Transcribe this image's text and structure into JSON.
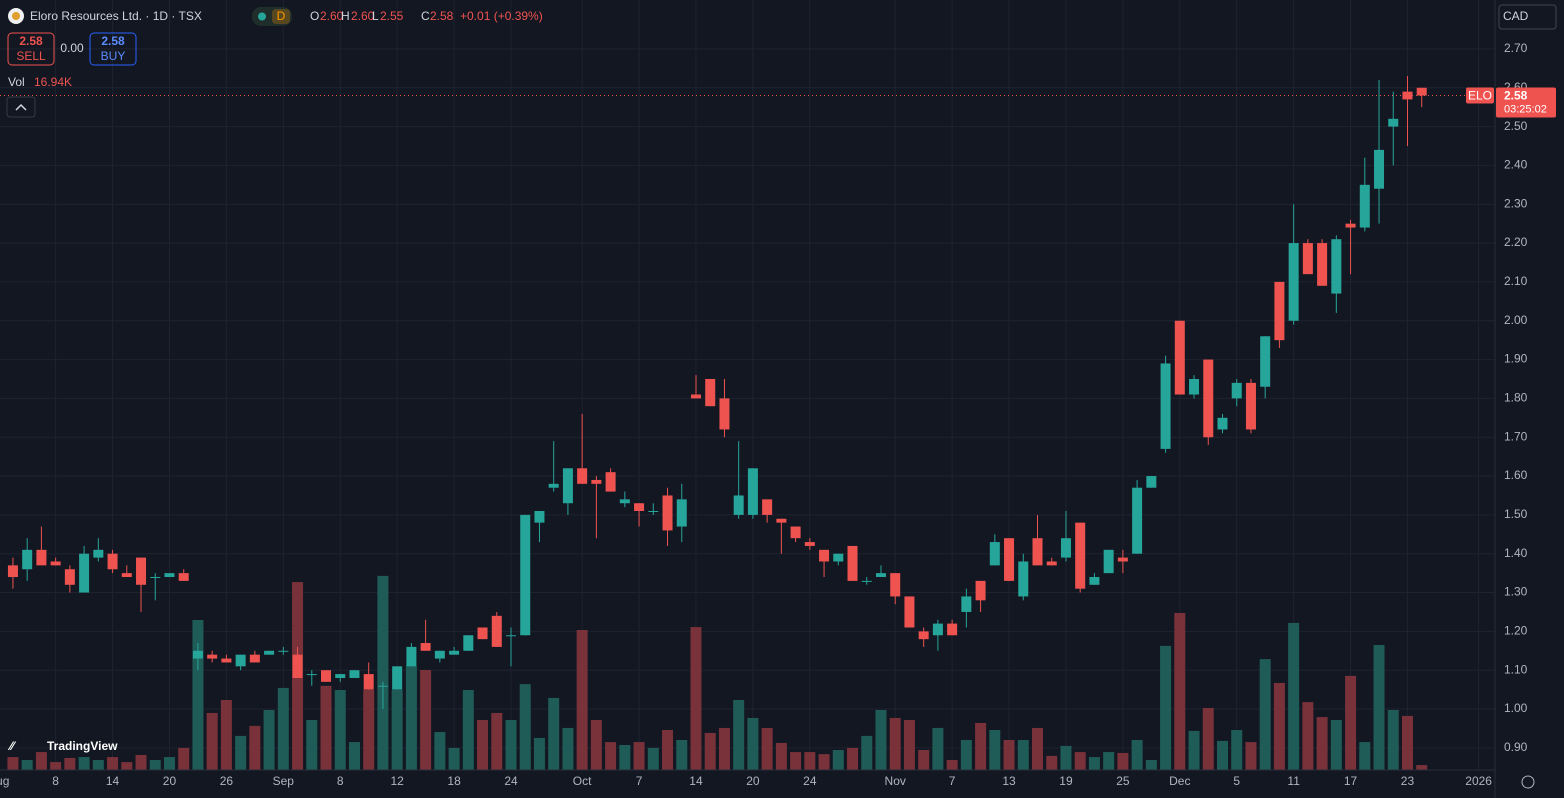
{
  "header": {
    "title": "Eloro Resources Ltd. · 1D · TSX",
    "interval_badge": "D",
    "open_label": "O",
    "open": "2.60",
    "high_label": "H",
    "high": "2.60",
    "low_label": "L",
    "low": "2.55",
    "close_label": "C",
    "close": "2.58",
    "change": "+0.01 (+0.39%)",
    "sell_price": "2.58",
    "sell_label": "SELL",
    "spread": "0.00",
    "buy_price": "2.58",
    "buy_label": "BUY",
    "volume_label": "Vol",
    "volume_value": "16.94K",
    "currency": "CAD",
    "symbol_tag": "ELO",
    "last_price_tag": "2.58",
    "countdown": "03:25:02",
    "logo": "TradingView"
  },
  "chart_data": {
    "type": "candlestick",
    "up_color": "#26a69a",
    "down_color": "#ef5350",
    "volume_up_color": "#1f5c58",
    "volume_down_color": "#79313a",
    "grid": true,
    "ylim": [
      0.843,
      2.826
    ],
    "yticks": [
      {
        "value": 0.9,
        "label": "0.90"
      },
      {
        "value": 1.0,
        "label": "1.00"
      },
      {
        "value": 1.1,
        "label": "1.10"
      },
      {
        "value": 1.2,
        "label": "1.20"
      },
      {
        "value": 1.3,
        "label": "1.30"
      },
      {
        "value": 1.4,
        "label": "1.40"
      },
      {
        "value": 1.5,
        "label": "1.50"
      },
      {
        "value": 1.6,
        "label": "1.60"
      },
      {
        "value": 1.7,
        "label": "1.70"
      },
      {
        "value": 1.8,
        "label": "1.80"
      },
      {
        "value": 1.9,
        "label": "1.90"
      },
      {
        "value": 2.0,
        "label": "2.00"
      },
      {
        "value": 2.1,
        "label": "2.10"
      },
      {
        "value": 2.2,
        "label": "2.20"
      },
      {
        "value": 2.3,
        "label": "2.30"
      },
      {
        "value": 2.4,
        "label": "2.40"
      },
      {
        "value": 2.5,
        "label": "2.50"
      },
      {
        "value": 2.6,
        "label": "2.60"
      },
      {
        "value": 2.7,
        "label": "2.70"
      }
    ],
    "xlim": [
      -0.91,
      104.15
    ],
    "xticks": [
      {
        "value": -1,
        "label": "Aug"
      },
      {
        "value": 3,
        "label": "8"
      },
      {
        "value": 7,
        "label": "14"
      },
      {
        "value": 11,
        "label": "20"
      },
      {
        "value": 15,
        "label": "26"
      },
      {
        "value": 19,
        "label": "Sep"
      },
      {
        "value": 23,
        "label": "8"
      },
      {
        "value": 27,
        "label": "12"
      },
      {
        "value": 31,
        "label": "18"
      },
      {
        "value": 35,
        "label": "24"
      },
      {
        "value": 40,
        "label": "Oct"
      },
      {
        "value": 44,
        "label": "7"
      },
      {
        "value": 48,
        "label": "14"
      },
      {
        "value": 52,
        "label": "20"
      },
      {
        "value": 56,
        "label": "24"
      },
      {
        "value": 62,
        "label": "Nov"
      },
      {
        "value": 66,
        "label": "7"
      },
      {
        "value": 70,
        "label": "13"
      },
      {
        "value": 74,
        "label": "19"
      },
      {
        "value": 78,
        "label": "25"
      },
      {
        "value": 82,
        "label": "Dec"
      },
      {
        "value": 86,
        "label": "5"
      },
      {
        "value": 90,
        "label": "11"
      },
      {
        "value": 94,
        "label": "17"
      },
      {
        "value": 98,
        "label": "23"
      },
      {
        "value": 103,
        "label": "2026"
      }
    ],
    "volume_ylim": [
      0,
      2618
    ],
    "open": [
      1.37,
      1.36,
      1.41,
      1.38,
      1.36,
      1.3,
      1.39,
      1.4,
      1.35,
      1.39,
      1.34,
      1.34,
      1.35,
      1.13,
      1.14,
      1.13,
      1.11,
      1.14,
      1.14,
      1.15,
      1.14,
      1.09,
      1.1,
      1.08,
      1.08,
      1.09,
      1.06,
      1.05,
      1.11,
      1.17,
      1.13,
      1.14,
      1.15,
      1.21,
      1.24,
      1.19,
      1.19,
      1.48,
      1.57,
      1.53,
      1.62,
      1.59,
      1.61,
      1.53,
      1.53,
      1.51,
      1.55,
      1.47,
      1.81,
      1.85,
      1.8,
      1.5,
      1.5,
      1.54,
      1.49,
      1.47,
      1.43,
      1.41,
      1.38,
      1.42,
      1.33,
      1.34,
      1.35,
      1.29,
      1.2,
      1.19,
      1.22,
      1.25,
      1.33,
      1.37,
      1.44,
      1.29,
      1.44,
      1.38,
      1.39,
      1.48,
      1.32,
      1.35,
      1.39,
      1.4,
      1.57,
      1.67,
      2.0,
      1.81,
      1.9,
      1.72,
      1.8,
      1.84,
      1.83,
      2.1,
      2.0,
      2.2,
      2.2,
      2.07,
      2.25,
      2.24,
      2.34,
      2.5,
      2.59,
      2.6
    ],
    "high": [
      1.39,
      1.44,
      1.47,
      1.39,
      1.37,
      1.42,
      1.44,
      1.41,
      1.37,
      1.39,
      1.35,
      1.35,
      1.36,
      1.17,
      1.15,
      1.14,
      1.14,
      1.15,
      1.15,
      1.16,
      1.16,
      1.1,
      1.1,
      1.09,
      1.1,
      1.12,
      1.07,
      1.11,
      1.17,
      1.23,
      1.15,
      1.16,
      1.19,
      1.21,
      1.25,
      1.21,
      1.5,
      1.51,
      1.69,
      1.62,
      1.76,
      1.6,
      1.62,
      1.56,
      1.53,
      1.53,
      1.57,
      1.58,
      1.86,
      1.85,
      1.85,
      1.69,
      1.62,
      1.54,
      1.49,
      1.47,
      1.44,
      1.41,
      1.4,
      1.42,
      1.34,
      1.37,
      1.35,
      1.29,
      1.21,
      1.23,
      1.23,
      1.31,
      1.33,
      1.45,
      1.44,
      1.4,
      1.5,
      1.39,
      1.51,
      1.48,
      1.35,
      1.41,
      1.41,
      1.59,
      1.6,
      1.91,
      2.0,
      1.86,
      1.9,
      1.76,
      1.85,
      1.85,
      1.96,
      2.1,
      2.3,
      2.21,
      2.21,
      2.22,
      2.26,
      2.42,
      2.62,
      2.59,
      2.63,
      2.6
    ],
    "low": [
      1.31,
      1.33,
      1.37,
      1.37,
      1.3,
      1.3,
      1.38,
      1.35,
      1.34,
      1.25,
      1.28,
      1.34,
      1.33,
      1.1,
      1.12,
      1.12,
      1.1,
      1.12,
      1.14,
      1.14,
      1.08,
      1.06,
      1.07,
      1.07,
      1.08,
      1.05,
      1.0,
      1.05,
      1.11,
      1.15,
      1.12,
      1.14,
      1.15,
      1.18,
      1.16,
      1.11,
      1.19,
      1.43,
      1.56,
      1.5,
      1.58,
      1.44,
      1.56,
      1.52,
      1.47,
      1.5,
      1.42,
      1.43,
      1.8,
      1.78,
      1.7,
      1.49,
      1.49,
      1.48,
      1.4,
      1.43,
      1.41,
      1.34,
      1.37,
      1.33,
      1.32,
      1.34,
      1.27,
      1.21,
      1.16,
      1.15,
      1.19,
      1.21,
      1.25,
      1.37,
      1.33,
      1.28,
      1.37,
      1.37,
      1.38,
      1.3,
      1.32,
      1.35,
      1.35,
      1.4,
      1.57,
      1.66,
      1.81,
      1.8,
      1.68,
      1.71,
      1.78,
      1.71,
      1.8,
      1.93,
      1.99,
      2.12,
      2.09,
      2.02,
      2.12,
      2.23,
      2.25,
      2.4,
      2.45,
      2.55
    ],
    "close": [
      1.34,
      1.41,
      1.37,
      1.37,
      1.32,
      1.4,
      1.41,
      1.36,
      1.34,
      1.32,
      1.34,
      1.35,
      1.33,
      1.15,
      1.13,
      1.12,
      1.14,
      1.12,
      1.15,
      1.15,
      1.08,
      1.09,
      1.07,
      1.09,
      1.1,
      1.05,
      1.06,
      1.11,
      1.16,
      1.15,
      1.15,
      1.15,
      1.19,
      1.18,
      1.16,
      1.19,
      1.5,
      1.51,
      1.58,
      1.62,
      1.58,
      1.58,
      1.56,
      1.54,
      1.51,
      1.51,
      1.46,
      1.54,
      1.8,
      1.78,
      1.72,
      1.55,
      1.62,
      1.5,
      1.48,
      1.44,
      1.42,
      1.38,
      1.4,
      1.33,
      1.33,
      1.35,
      1.29,
      1.21,
      1.18,
      1.22,
      1.19,
      1.29,
      1.28,
      1.43,
      1.33,
      1.38,
      1.37,
      1.37,
      1.44,
      1.31,
      1.34,
      1.41,
      1.38,
      1.57,
      1.6,
      1.89,
      1.81,
      1.85,
      1.7,
      1.75,
      1.84,
      1.72,
      1.96,
      1.95,
      2.2,
      2.12,
      2.09,
      2.21,
      2.24,
      2.35,
      2.44,
      2.52,
      2.57,
      2.58
    ],
    "volume": [
      44,
      34,
      61,
      27,
      41,
      44,
      34,
      44,
      27,
      51,
      34,
      44,
      75,
      510,
      194,
      238,
      116,
      150,
      204,
      279,
      639,
      170,
      286,
      272,
      95,
      272,
      660,
      272,
      354,
      340,
      129,
      75,
      272,
      170,
      194,
      170,
      292,
      109,
      245,
      143,
      476,
      170,
      95,
      85,
      95,
      75,
      136,
      102,
      486,
      126,
      143,
      238,
      177,
      143,
      92,
      61,
      61,
      54,
      68,
      75,
      116,
      204,
      177,
      170,
      68,
      143,
      34,
      102,
      160,
      136,
      102,
      102,
      143,
      48,
      82,
      61,
      44,
      61,
      58,
      102,
      34,
      422,
      534,
      133,
      211,
      99,
      136,
      95,
      377,
      296,
      500,
      231,
      180,
      170,
      320,
      95,
      425,
      204,
      184,
      16.94
    ]
  }
}
